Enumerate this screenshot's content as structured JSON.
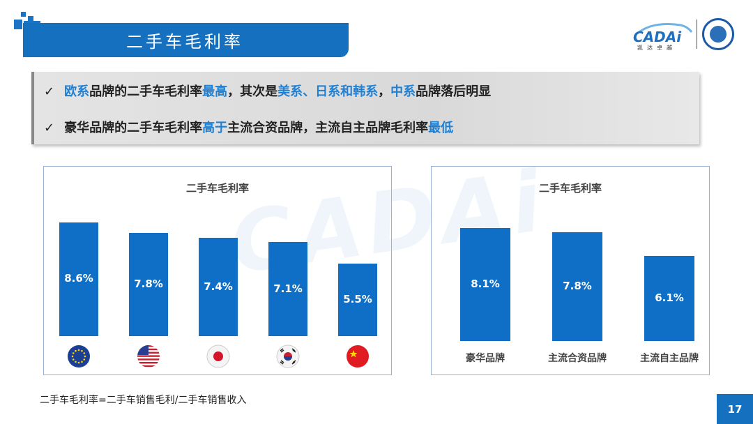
{
  "header": {
    "title": "二手车毛利率",
    "logo_text": "CADAi",
    "logo_sub": "凯达卓越",
    "page_number": "17"
  },
  "summary": {
    "line1": [
      {
        "t": "欧系",
        "h": true
      },
      {
        "t": "品牌的二手车毛利率",
        "h": false
      },
      {
        "t": "最高",
        "h": true
      },
      {
        "t": "，其次是",
        "h": false
      },
      {
        "t": "美系、日系和韩系",
        "h": true
      },
      {
        "t": "，",
        "h": false
      },
      {
        "t": "中系",
        "h": true
      },
      {
        "t": "品牌落后明显",
        "h": false
      }
    ],
    "line2": [
      {
        "t": "豪华品牌的二手车毛利率",
        "h": false
      },
      {
        "t": "高于",
        "h": true
      },
      {
        "t": "主流合资品牌，主流自主品牌毛利率",
        "h": false
      },
      {
        "t": "最低",
        "h": true
      }
    ],
    "check": "✓"
  },
  "chart_data": [
    {
      "type": "bar",
      "title": "二手车毛利率",
      "categories": [
        "欧系",
        "美系",
        "日系",
        "韩系",
        "中系"
      ],
      "category_icons": [
        "eu-flag",
        "us-flag",
        "japan-flag",
        "korea-flag",
        "china-flag"
      ],
      "values": [
        8.6,
        7.8,
        7.4,
        7.1,
        5.5
      ],
      "labels": [
        "8.6%",
        "7.8%",
        "7.4%",
        "7.1%",
        "5.5%"
      ],
      "unit": "%",
      "color": "#0f6fc6"
    },
    {
      "type": "bar",
      "title": "二手车毛利率",
      "categories": [
        "豪华品牌",
        "主流合资品牌",
        "主流自主品牌"
      ],
      "values": [
        8.1,
        7.8,
        6.1
      ],
      "labels": [
        "8.1%",
        "7.8%",
        "6.1%"
      ],
      "unit": "%",
      "color": "#0f6fc6"
    }
  ],
  "footnote": "二手车毛利率=二手车销售毛利/二手车销售收入"
}
